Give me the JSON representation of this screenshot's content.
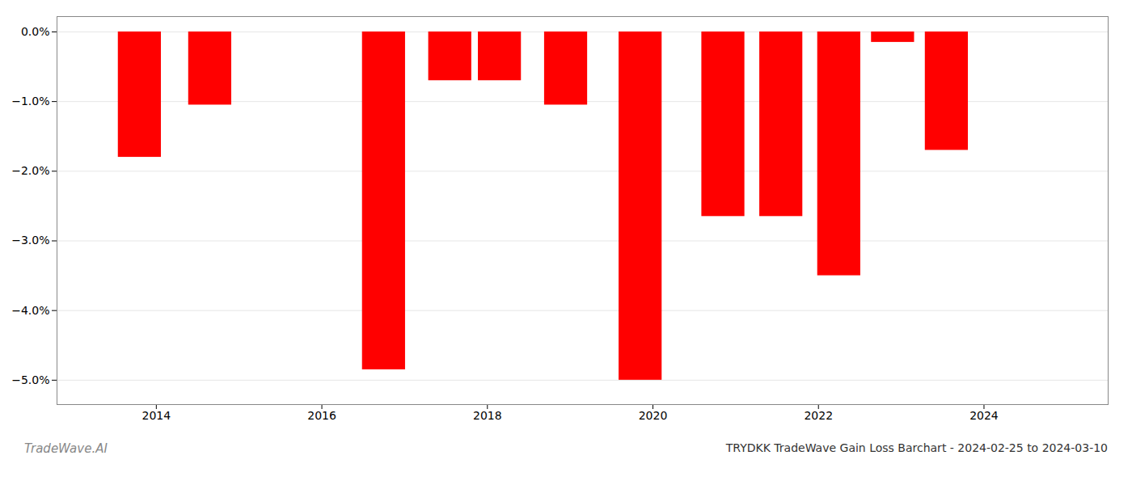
{
  "chart_data": {
    "type": "bar",
    "title": "TRYDKK TradeWave Gain Loss Barchart - 2024-02-25 to 2024-03-10",
    "annotations": [
      "TradeWave.AI"
    ],
    "x": [
      2013.8,
      2014.65,
      2016.75,
      2017.55,
      2018.15,
      2018.95,
      2019.85,
      2020.85,
      2021.55,
      2022.25,
      2022.9,
      2023.55
    ],
    "values": [
      -1.8,
      -1.05,
      -4.85,
      -0.7,
      -0.7,
      -1.05,
      -5.0,
      -2.65,
      -2.65,
      -3.5,
      -0.15,
      -1.7
    ],
    "color": "#ff0000",
    "xlim": [
      2012.8,
      2025.5
    ],
    "xticks": [
      2014,
      2016,
      2018,
      2020,
      2022,
      2024
    ],
    "ylim": [
      -5.35,
      0.22
    ],
    "yticks": [
      {
        "value": 0.0,
        "label": "0.0%"
      },
      {
        "value": -1.0,
        "label": "−1.0%"
      },
      {
        "value": -2.0,
        "label": "−2.0%"
      },
      {
        "value": -3.0,
        "label": "−3.0%"
      },
      {
        "value": -4.0,
        "label": "−4.0%"
      },
      {
        "value": -5.0,
        "label": "−5.0%"
      }
    ],
    "grid": true
  }
}
